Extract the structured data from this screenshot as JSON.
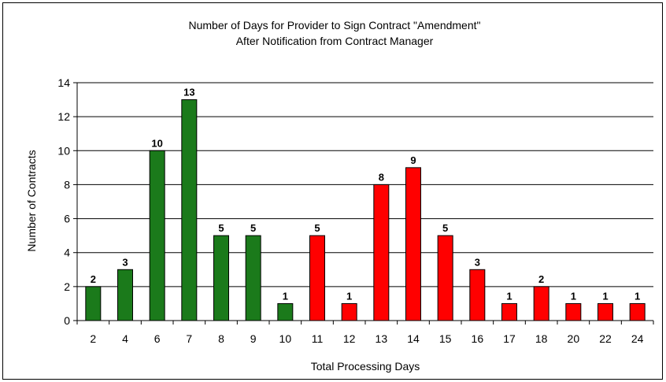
{
  "chart_data": {
    "type": "bar",
    "title": "Number of Days for Provider to Sign Contract \"Amendment\"",
    "subtitle": "After Notification from Contract Manager",
    "xlabel": "Total Processing Days",
    "ylabel": "Number of Contracts",
    "categories": [
      "2",
      "4",
      "6",
      "7",
      "8",
      "9",
      "10",
      "11",
      "12",
      "13",
      "14",
      "15",
      "16",
      "17",
      "18",
      "20",
      "22",
      "24"
    ],
    "values": [
      2,
      3,
      10,
      13,
      5,
      5,
      1,
      5,
      1,
      8,
      9,
      5,
      3,
      1,
      2,
      1,
      1,
      1
    ],
    "data_labels": [
      "2",
      "3",
      "10",
      "13",
      "5",
      "5",
      "1",
      "5",
      "1",
      "8",
      "9",
      "5",
      "3",
      "1",
      "2",
      "1",
      "1",
      "1"
    ],
    "bar_colors": [
      "#1b7a1b",
      "#1b7a1b",
      "#1b7a1b",
      "#1b7a1b",
      "#1b7a1b",
      "#1b7a1b",
      "#1b7a1b",
      "#ff0000",
      "#ff0000",
      "#ff0000",
      "#ff0000",
      "#ff0000",
      "#ff0000",
      "#ff0000",
      "#ff0000",
      "#ff0000",
      "#ff0000",
      "#ff0000"
    ],
    "ylim": [
      0,
      14
    ],
    "yticks": [
      "0",
      "2",
      "4",
      "6",
      "8",
      "10",
      "12",
      "14"
    ],
    "grid": true,
    "legend": "none"
  }
}
